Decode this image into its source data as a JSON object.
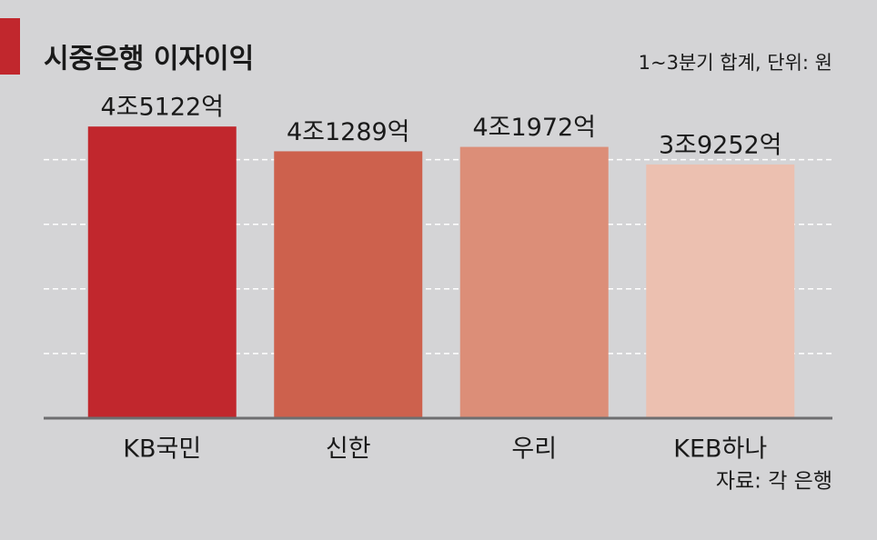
{
  "chart_data": {
    "type": "bar",
    "title": "시중은행 이자이익",
    "subtitle": "1~3분기 합계, 단위: 원",
    "source": "자료: 각 은행",
    "categories": [
      "KB국민",
      "신한",
      "우리",
      "KEB하나"
    ],
    "values": [
      45122,
      41289,
      41972,
      39252
    ],
    "value_labels": [
      "4조5122억",
      "4조1289억",
      "4조1972억",
      "3조9252억"
    ],
    "colors": [
      "#c1272d",
      "#cd614d",
      "#dc8e78",
      "#ecc0b0"
    ],
    "ylim": [
      0,
      50000
    ],
    "yticks": [
      0,
      10000,
      20000,
      30000,
      40000
    ],
    "grid": true
  }
}
